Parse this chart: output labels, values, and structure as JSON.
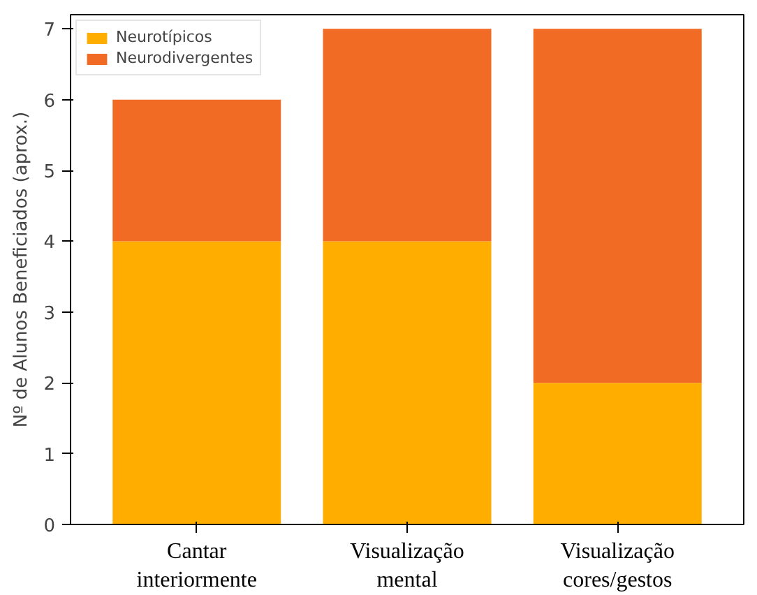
{
  "chart_data": {
    "type": "bar",
    "stacked": true,
    "ylabel": "Nº de Alunos Beneficiados (aprox.)",
    "categories": [
      "Cantar\ninteriormente",
      "Visualização\nmental",
      "Visualização\ncores/gestos"
    ],
    "series": [
      {
        "name": "Neurotípicos",
        "color": "#ffae00",
        "values": [
          4,
          4,
          2
        ]
      },
      {
        "name": "Neurodivergentes",
        "color": "#f26b25",
        "values": [
          2,
          3,
          5
        ]
      }
    ],
    "ylim": [
      0,
      7.2
    ],
    "yticks": [
      0,
      1,
      2,
      3,
      4,
      5,
      6,
      7
    ],
    "grid": false,
    "legend": "top left"
  }
}
